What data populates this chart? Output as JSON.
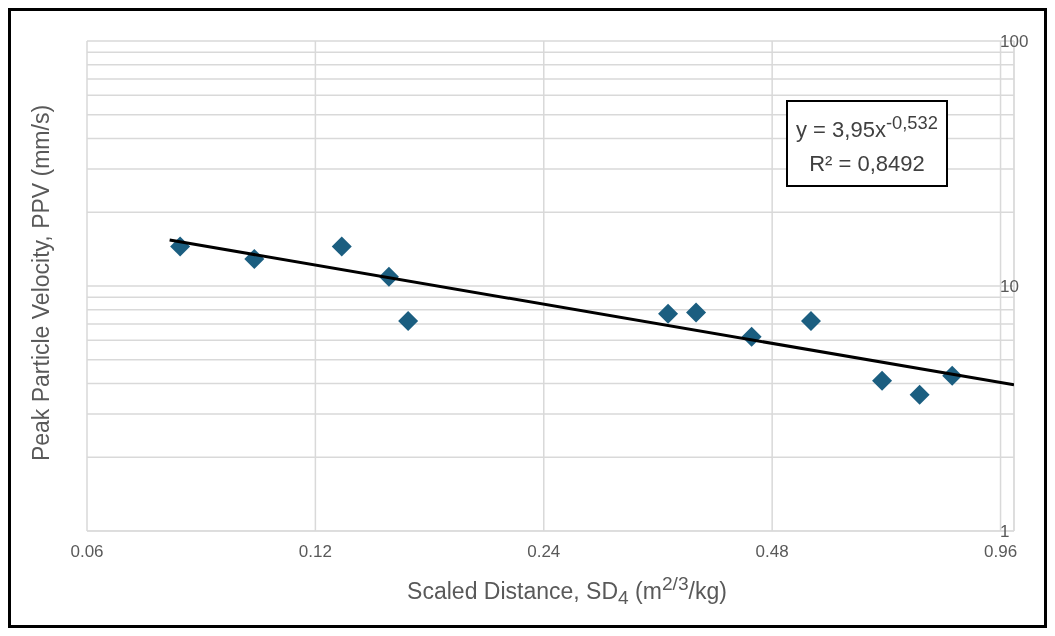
{
  "chart_data": {
    "type": "scatter",
    "xlabel": "Scaled Distance, SD$_{4}$ (m$^{2/3}$/kg)",
    "ylabel": "Peak Particle Velocity, PPV (mm/s)",
    "annotations": [
      "y = 3,95x$^{-0,532}$",
      "R² = 0,8492"
    ],
    "log": "xy",
    "grid": true,
    "legend": false,
    "xlim": [
      0.06,
      1
    ],
    "xticks": [
      0.06,
      0.12,
      0.24,
      0.48,
      0.96
    ],
    "ylim": [
      1,
      100
    ],
    "yticks": [
      1,
      {
        "value": 2,
        "label": null
      },
      {
        "value": 3,
        "label": null
      },
      {
        "value": 4,
        "label": null
      },
      {
        "value": 5,
        "label": null
      },
      {
        "value": 6,
        "label": null
      },
      {
        "value": 7,
        "label": null
      },
      {
        "value": 8,
        "label": null
      },
      {
        "value": 9,
        "label": null
      },
      10,
      {
        "value": 20,
        "label": null
      },
      {
        "value": 30,
        "label": null
      },
      {
        "value": 40,
        "label": null
      },
      {
        "value": 50,
        "label": null
      },
      {
        "value": 60,
        "label": null
      },
      {
        "value": 70,
        "label": null
      },
      {
        "value": 80,
        "label": null
      },
      {
        "value": 90,
        "label": null
      },
      100
    ],
    "series": [
      {
        "type": "scatter",
        "marker": "diamond",
        "color": "#1b5e80",
        "x": [
          0.0796,
          0.0997,
          0.13,
          0.15,
          0.159,
          0.35,
          0.381,
          0.451,
          0.54,
          0.67,
          0.751,
          0.829
        ],
        "values": [
          14.5,
          12.9,
          14.5,
          10.9,
          7.2,
          7.7,
          7.8,
          6.2,
          7.2,
          4.1,
          3.6,
          4.3
        ]
      },
      {
        "type": "line",
        "color": "#000000",
        "x": [
          0.0771,
          1
        ],
        "values": [
          15.4,
          3.95
        ]
      }
    ]
  }
}
